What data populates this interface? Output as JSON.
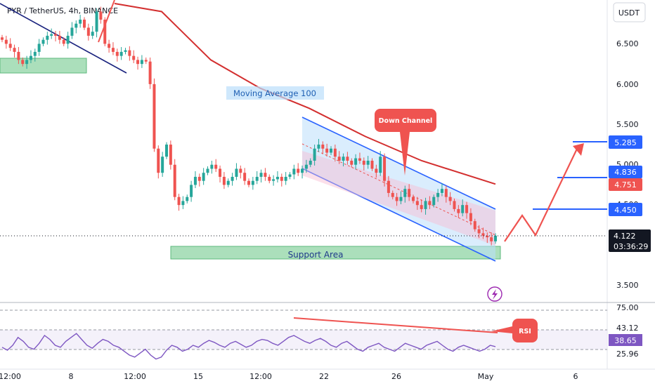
{
  "header": {
    "title": "PYR / TetherUS, 4h, BINANCE",
    "currency_button": "USDT"
  },
  "colors": {
    "up": "#26a69a",
    "down": "#ef5350",
    "ma": "#d32f2f",
    "channel": "#2962ff",
    "level": "#2962ff",
    "annotation_red": "#ef5350",
    "rsi": "#7e57c2"
  },
  "chart_data": {
    "type": "candlestick",
    "price_axis": {
      "range": [
        3.3,
        7.0
      ],
      "ticks": [
        "6.500",
        "6.000",
        "5.500",
        "5.000",
        "4.500",
        "3.500"
      ]
    },
    "time_axis": {
      "ticks": [
        "12:00",
        "8",
        "12:00",
        "15",
        "12:00",
        "22",
        "26",
        "May",
        "6"
      ]
    },
    "ohlc_close_path": [
      6.55,
      6.5,
      6.45,
      6.4,
      6.3,
      6.25,
      6.3,
      6.35,
      6.4,
      6.5,
      6.55,
      6.6,
      6.62,
      6.6,
      6.55,
      6.5,
      6.6,
      6.7,
      6.75,
      6.8,
      6.7,
      6.6,
      6.65,
      6.9,
      6.8,
      6.5,
      6.45,
      6.4,
      6.35,
      6.4,
      6.42,
      6.35,
      6.3,
      6.25,
      6.3,
      6.28,
      6.0,
      5.2,
      4.9,
      5.1,
      5.25,
      5.0,
      4.6,
      4.5,
      4.55,
      4.6,
      4.75,
      4.85,
      4.8,
      4.9,
      4.95,
      5.0,
      4.95,
      4.85,
      4.75,
      4.8,
      4.85,
      4.95,
      4.9,
      4.8,
      4.75,
      4.8,
      4.85,
      4.9,
      4.85,
      4.8,
      4.82,
      4.85,
      4.8,
      4.85,
      4.88,
      4.95,
      4.9,
      4.95,
      5.0,
      5.05,
      5.2,
      5.25,
      5.2,
      5.15,
      5.2,
      5.1,
      5.05,
      5.1,
      5.05,
      5.0,
      5.08,
      5.05,
      5.0,
      5.05,
      4.95,
      4.9,
      5.1,
      4.8,
      4.65,
      4.6,
      4.55,
      4.6,
      4.7,
      4.6,
      4.55,
      4.5,
      4.45,
      4.55,
      4.5,
      4.6,
      4.65,
      4.7,
      4.6,
      4.55,
      4.45,
      4.4,
      4.5,
      4.4,
      4.3,
      4.2,
      4.15,
      4.12,
      4.1,
      4.05,
      4.12
    ],
    "moving_average_100": {
      "label": "Moving Average 100",
      "points": [
        [
          6.5,
          7.0
        ],
        [
          6.8,
          6.9
        ],
        [
          6.5,
          6.3
        ],
        [
          6.0,
          5.95
        ],
        [
          5.6,
          5.7
        ],
        [
          5.45,
          5.35
        ],
        [
          5.2,
          5.05
        ],
        [
          4.85,
          4.76
        ]
      ]
    },
    "down_channel": {
      "label": "Down Channel",
      "upper": [
        5.55,
        4.45
      ],
      "lower": [
        4.95,
        3.82
      ]
    },
    "support_area": {
      "label": "Support Area",
      "range": [
        3.86,
        4.0
      ]
    },
    "levels": [
      {
        "value": "5.285",
        "color": "#2962ff"
      },
      {
        "value": "4.836",
        "color": "#2962ff"
      },
      {
        "value": "4.751",
        "color": "#ef5350"
      },
      {
        "value": "4.450",
        "color": "#2962ff"
      },
      {
        "value": "4.122",
        "color": "#131722"
      }
    ],
    "countdown": "03:36:29",
    "projection": [
      4.0,
      4.45,
      4.12,
      5.285
    ],
    "rsi": {
      "label": "RSI",
      "ticks": [
        "75.00",
        "43.12",
        "38.65",
        "25.96"
      ],
      "range": [
        20,
        80
      ],
      "values": [
        38,
        35,
        40,
        48,
        44,
        38,
        36,
        42,
        50,
        46,
        40,
        38,
        44,
        48,
        52,
        46,
        40,
        37,
        42,
        46,
        44,
        40,
        38,
        34,
        30,
        28,
        32,
        36,
        30,
        26,
        28,
        35,
        40,
        38,
        34,
        36,
        40,
        38,
        42,
        45,
        43,
        40,
        38,
        42,
        44,
        41,
        38,
        40,
        44,
        46,
        45,
        42,
        40,
        44,
        48,
        50,
        47,
        44,
        42,
        45,
        47,
        44,
        40,
        38,
        42,
        44,
        40,
        36,
        34,
        38,
        40,
        42,
        38,
        36,
        34,
        38,
        42,
        40,
        38,
        36,
        40,
        42,
        44,
        40,
        36,
        34,
        38,
        40,
        38,
        36,
        34,
        36,
        40,
        38.65
      ]
    }
  }
}
